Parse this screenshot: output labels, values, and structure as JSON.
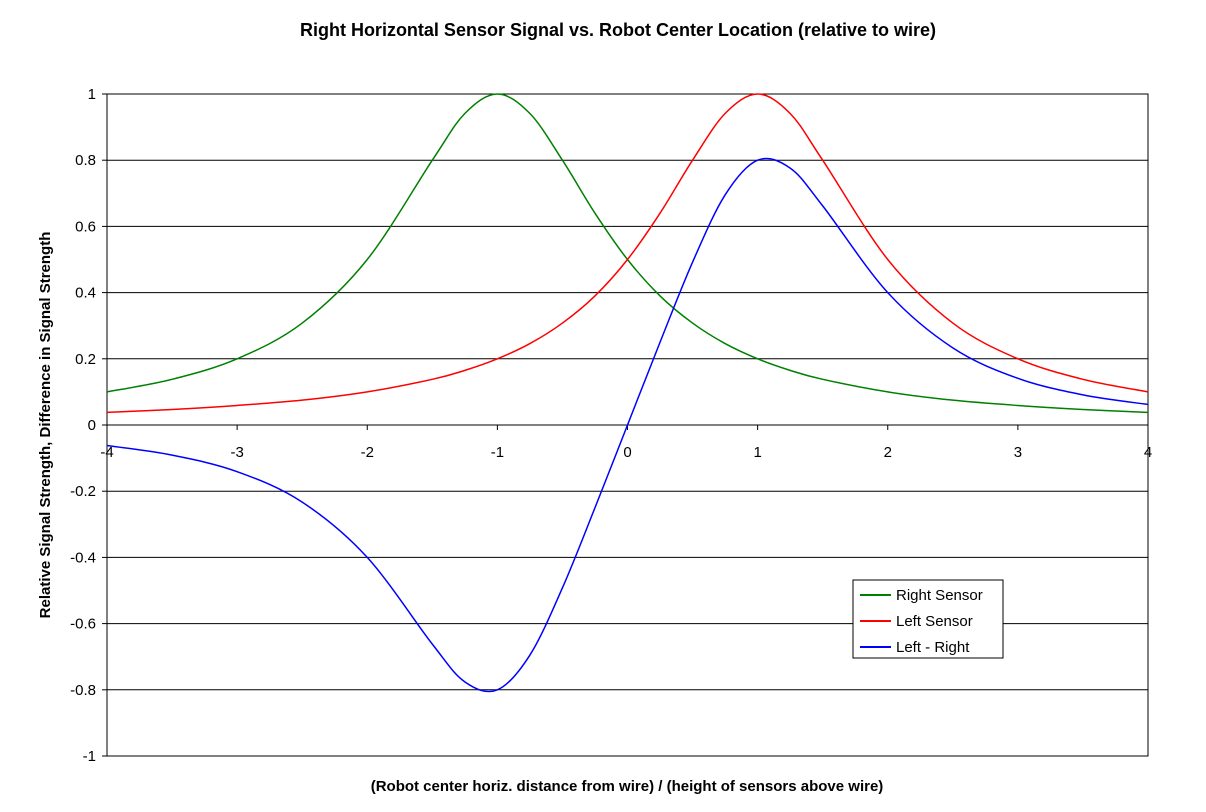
{
  "chart_data": {
    "type": "line",
    "title": "Right Horizontal Sensor Signal vs. Robot Center Location (relative to wire)",
    "xlabel": "(Robot center horiz. distance from wire) / (height of sensors above wire)",
    "ylabel": "Relative Signal Strength, Difference in Signal Strength",
    "xlim": [
      -4,
      4
    ],
    "ylim": [
      -1,
      1
    ],
    "x_ticks": [
      "-4",
      "-3",
      "-2",
      "-1",
      "0",
      "1",
      "2",
      "3",
      "4"
    ],
    "y_ticks": [
      "1",
      "0.8",
      "0.6",
      "0.4",
      "0.2",
      "0",
      "-0.2",
      "-0.4",
      "-0.6",
      "-0.8",
      "-1"
    ],
    "grid": "horizontal",
    "legend_position": "lower-right",
    "x": [
      -4,
      -3.5,
      -3,
      -2.5,
      -2,
      -1.5,
      -1.25,
      -1,
      -0.75,
      -0.5,
      -0.25,
      0,
      0.25,
      0.5,
      0.75,
      1,
      1.25,
      1.5,
      2,
      2.5,
      3,
      3.5,
      4
    ],
    "series": [
      {
        "name": "Right Sensor",
        "color": "#008000",
        "values": [
          0.1,
          0.138,
          0.2,
          0.308,
          0.5,
          0.8,
          0.941,
          1.0,
          0.941,
          0.8,
          0.64,
          0.5,
          0.39,
          0.308,
          0.246,
          0.2,
          0.165,
          0.138,
          0.1,
          0.075,
          0.059,
          0.047,
          0.038
        ]
      },
      {
        "name": "Left Sensor",
        "color": "#FF0000",
        "values": [
          0.038,
          0.047,
          0.059,
          0.075,
          0.1,
          0.138,
          0.165,
          0.2,
          0.246,
          0.308,
          0.39,
          0.5,
          0.64,
          0.8,
          0.941,
          1.0,
          0.941,
          0.8,
          0.5,
          0.308,
          0.2,
          0.138,
          0.1
        ]
      },
      {
        "name": "Left - Right",
        "color": "#0000FF",
        "values": [
          -0.062,
          -0.091,
          -0.141,
          -0.233,
          -0.4,
          -0.662,
          -0.776,
          -0.8,
          -0.695,
          -0.492,
          -0.25,
          0.0,
          0.25,
          0.492,
          0.695,
          0.8,
          0.776,
          0.662,
          0.4,
          0.233,
          0.141,
          0.091,
          0.062
        ]
      }
    ]
  }
}
